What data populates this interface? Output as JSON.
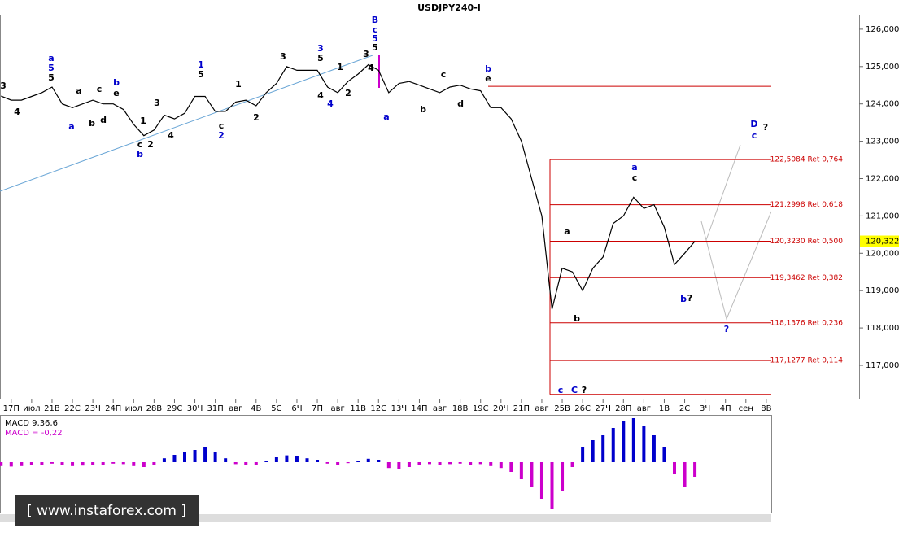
{
  "chart_data": [
    {
      "type": "line",
      "title": "USDJPY240-I",
      "color": "#000000",
      "x": [
        -0.5,
        0,
        0.5,
        1,
        1.5,
        2,
        2.5,
        3,
        3.5,
        4,
        4.5,
        5,
        5.5,
        6,
        6.5,
        7,
        7.5,
        8,
        8.5,
        9,
        9.5,
        10,
        10.5,
        11,
        11.5,
        12,
        12.5,
        13,
        13.5,
        14,
        14.5,
        15,
        15.5,
        16,
        16.5,
        17,
        17.5,
        18,
        18.5,
        19,
        19.5,
        20,
        20.5,
        21,
        21.5,
        22,
        22.5,
        23,
        23.5,
        24,
        24.5,
        25,
        25.5,
        26,
        26.5,
        27,
        27.5,
        28,
        28.5,
        29,
        29.5,
        30,
        30.5,
        31,
        31.5,
        32,
        32.5,
        33,
        33.5
      ],
      "values": [
        124.21,
        124.1,
        124.1,
        124.2,
        124.3,
        124.45,
        124.0,
        123.9,
        124.0,
        124.1,
        124.0,
        124.0,
        123.85,
        123.45,
        123.15,
        123.3,
        123.7,
        123.6,
        123.75,
        124.2,
        124.2,
        123.8,
        123.8,
        124.05,
        124.1,
        123.95,
        124.3,
        124.55,
        125.0,
        124.9,
        124.9,
        124.9,
        124.45,
        124.3,
        124.6,
        124.8,
        125.05,
        124.9,
        124.3,
        124.55,
        124.6,
        124.5,
        124.4,
        124.3,
        124.45,
        124.5,
        124.4,
        124.35,
        123.9,
        123.9,
        123.6,
        123.0,
        122.0,
        121.0,
        118.5,
        119.6,
        119.5,
        119.0,
        119.6,
        119.9,
        120.8,
        121.0,
        121.5,
        121.2,
        121.3,
        120.7,
        119.7,
        120.0,
        120.32
      ],
      "xlim": [
        -0.55,
        41.55
      ],
      "xticks": [
        {
          "value": 0,
          "label": "17П"
        },
        {
          "value": 1,
          "label": "июл"
        },
        {
          "value": 2,
          "label": "21В"
        },
        {
          "value": 3,
          "label": "22С"
        },
        {
          "value": 4,
          "label": "23Ч"
        },
        {
          "value": 5,
          "label": "24П"
        },
        {
          "value": 6,
          "label": "июл"
        },
        {
          "value": 7,
          "label": "28В"
        },
        {
          "value": 8,
          "label": "29С"
        },
        {
          "value": 9,
          "label": "30Ч"
        },
        {
          "value": 10,
          "label": "31П"
        },
        {
          "value": 11,
          "label": "авг"
        },
        {
          "value": 12,
          "label": "4В"
        },
        {
          "value": 13,
          "label": "5С"
        },
        {
          "value": 14,
          "label": "6Ч"
        },
        {
          "value": 15,
          "label": "7П"
        },
        {
          "value": 16,
          "label": "авг"
        },
        {
          "value": 17,
          "label": "11В"
        },
        {
          "value": 18,
          "label": "12С"
        },
        {
          "value": 19,
          "label": "13Ч"
        },
        {
          "value": 20,
          "label": "14П"
        },
        {
          "value": 21,
          "label": "авг"
        },
        {
          "value": 22,
          "label": "18В"
        },
        {
          "value": 23,
          "label": "19С"
        },
        {
          "value": 24,
          "label": "20Ч"
        },
        {
          "value": 25,
          "label": "21П"
        },
        {
          "value": 26,
          "label": "авг"
        },
        {
          "value": 27,
          "label": "25В"
        },
        {
          "value": 28,
          "label": "26С"
        },
        {
          "value": 29,
          "label": "27Ч"
        },
        {
          "value": 30,
          "label": "28П"
        },
        {
          "value": 31,
          "label": "авг"
        },
        {
          "value": 32,
          "label": "1В"
        },
        {
          "value": 33,
          "label": "2С"
        },
        {
          "value": 34,
          "label": "3Ч"
        },
        {
          "value": 35,
          "label": "4П"
        },
        {
          "value": 36,
          "label": "сен"
        },
        {
          "value": 37,
          "label": "8В"
        }
      ],
      "ylim": [
        116.15,
        126.39
      ],
      "yticks": [
        {
          "value": 117,
          "label": "117,000"
        },
        {
          "value": 118,
          "label": "118,000"
        },
        {
          "value": 119,
          "label": "119,000"
        },
        {
          "value": 120,
          "label": "120,000"
        },
        {
          "value": 121,
          "label": "121,000"
        },
        {
          "value": 122,
          "label": "122,000"
        },
        {
          "value": 123,
          "label": "123,000"
        },
        {
          "value": 124,
          "label": "124,000"
        },
        {
          "value": 125,
          "label": "125,000"
        },
        {
          "value": 126,
          "label": "126,000"
        }
      ],
      "current_price": {
        "value": 120.322,
        "label": "120,322"
      },
      "level_color": "#cc0000",
      "levels": [
        {
          "value": 122.5084,
          "label": "122,5084 Ret 0,764"
        },
        {
          "value": 121.2998,
          "label": "121,2998 Ret 0,618"
        },
        {
          "value": 120.323,
          "label": "120,3230 Ret 0,500"
        },
        {
          "value": 119.3462,
          "label": "119,3462 Ret 0,382"
        },
        {
          "value": 118.1376,
          "label": "118,1376 Ret 0,236"
        },
        {
          "value": 117.1277,
          "label": "117,1277 Ret 0,114"
        }
      ],
      "extra_levels": [
        124.47,
        116.22
      ],
      "annotations": [
        {
          "text": "B",
          "color": "#0000cc"
        },
        {
          "text": "c",
          "color": "#0000cc"
        },
        {
          "text": "5",
          "color": "#0000cc"
        },
        {
          "text": "5",
          "color": "#000000"
        },
        {
          "text": "a",
          "color": "#0000cc"
        },
        {
          "text": "5",
          "color": "#0000cc"
        },
        {
          "text": "5",
          "color": "#000000"
        },
        {
          "text": "1",
          "color": "#0000cc"
        },
        {
          "text": "5",
          "color": "#000000"
        },
        {
          "text": "3",
          "color": "#0000cc"
        },
        {
          "text": "5",
          "color": "#000000"
        },
        {
          "text": "3",
          "color": "#000000"
        },
        {
          "text": "3",
          "color": "#000000"
        },
        {
          "text": "4",
          "color": "#000000"
        },
        {
          "text": "c",
          "color": "#000000"
        },
        {
          "text": "b",
          "color": "#0000cc"
        },
        {
          "text": "1",
          "color": "#000000"
        },
        {
          "text": "2",
          "color": "#000000"
        },
        {
          "text": "3",
          "color": "#000000"
        },
        {
          "text": "4",
          "color": "#000000"
        },
        {
          "text": "c",
          "color": "#000000"
        },
        {
          "text": "2",
          "color": "#0000cc"
        },
        {
          "text": "1",
          "color": "#000000"
        },
        {
          "text": "2",
          "color": "#000000"
        },
        {
          "text": "4",
          "color": "#000000"
        },
        {
          "text": "4",
          "color": "#0000cc"
        },
        {
          "text": "2",
          "color": "#000000"
        },
        {
          "text": "1",
          "color": "#000000"
        },
        {
          "text": "a",
          "color": "#0000cc"
        },
        {
          "text": "b",
          "color": "#0000cc"
        },
        {
          "text": "e",
          "color": "#000000"
        },
        {
          "text": "c",
          "color": "#000000"
        },
        {
          "text": "d",
          "color": "#000000"
        },
        {
          "text": "b",
          "color": "#000000"
        },
        {
          "text": "a",
          "color": "#000000"
        },
        {
          "text": "b",
          "color": "#000000"
        },
        {
          "text": "c",
          "color": "#000000"
        },
        {
          "text": "d",
          "color": "#000000"
        },
        {
          "text": "b",
          "color": "#0000cc"
        },
        {
          "text": "e",
          "color": "#000000"
        },
        {
          "text": "a",
          "color": "#0000cc"
        },
        {
          "text": "4",
          "color": "#000000"
        },
        {
          "text": "3",
          "color": "#000000"
        },
        {
          "text": "a",
          "color": "#0000cc"
        },
        {
          "text": "c",
          "color": "#000000"
        },
        {
          "text": "a",
          "color": "#000000"
        },
        {
          "text": "b",
          "color": "#000000"
        },
        {
          "text": "b",
          "color": "#0000cc"
        },
        {
          "text": "?",
          "color": "#000000"
        },
        {
          "text": "c",
          "color": "#0000cc"
        },
        {
          "text": "C",
          "color": "#0000cc"
        },
        {
          "text": "?",
          "color": "#000000"
        },
        {
          "text": "D",
          "color": "#0000cc"
        },
        {
          "text": "?",
          "color": "#000000"
        },
        {
          "text": "c",
          "color": "#0000cc"
        },
        {
          "text": "?",
          "color": "#0000cc"
        }
      ],
      "watermark": "[ www.instaforex.com ]"
    },
    {
      "type": "bar",
      "label": "MACD 9,36,6",
      "indicator_value": {
        "value": -0.22,
        "label": "MACD = -0,22"
      },
      "positive_color": "#0000cc",
      "negative_color": "#cc00cc",
      "x": [
        -0.5,
        0,
        0.5,
        1,
        1.5,
        2,
        2.5,
        3,
        3.5,
        4,
        4.5,
        5,
        5.5,
        6,
        6.5,
        7,
        7.5,
        8,
        8.5,
        9,
        9.5,
        10,
        10.5,
        11,
        11.5,
        12,
        12.5,
        13,
        13.5,
        14,
        14.5,
        15,
        15.5,
        16,
        16.5,
        17,
        17.5,
        18,
        18.5,
        19,
        19.5,
        20,
        20.5,
        21,
        21.5,
        22,
        22.5,
        23,
        23.5,
        24,
        24.5,
        25,
        25.5,
        26,
        26.5,
        27,
        27.5,
        28,
        28.5,
        29,
        29.5,
        30,
        30.5,
        31,
        31.5,
        32,
        32.5,
        33,
        33.5
      ],
      "values": [
        -0.08,
        -0.09,
        -0.08,
        -0.06,
        -0.05,
        -0.03,
        -0.06,
        -0.08,
        -0.07,
        -0.06,
        -0.05,
        -0.03,
        -0.04,
        -0.08,
        -0.1,
        -0.05,
        0.08,
        0.15,
        0.2,
        0.25,
        0.3,
        0.2,
        0.08,
        -0.04,
        -0.05,
        -0.06,
        0.03,
        0.1,
        0.14,
        0.12,
        0.08,
        0.05,
        -0.03,
        -0.06,
        -0.02,
        0.03,
        0.07,
        0.05,
        -0.12,
        -0.15,
        -0.1,
        -0.05,
        -0.04,
        -0.06,
        -0.04,
        -0.03,
        -0.05,
        -0.04,
        -0.08,
        -0.12,
        -0.2,
        -0.35,
        -0.5,
        -0.75,
        -0.95,
        -0.6,
        -0.1,
        0.3,
        0.45,
        0.55,
        0.7,
        0.85,
        0.9,
        0.75,
        0.55,
        0.3,
        -0.25,
        -0.5,
        -0.3
      ],
      "ylim": [
        -1.0,
        1.0
      ]
    }
  ]
}
